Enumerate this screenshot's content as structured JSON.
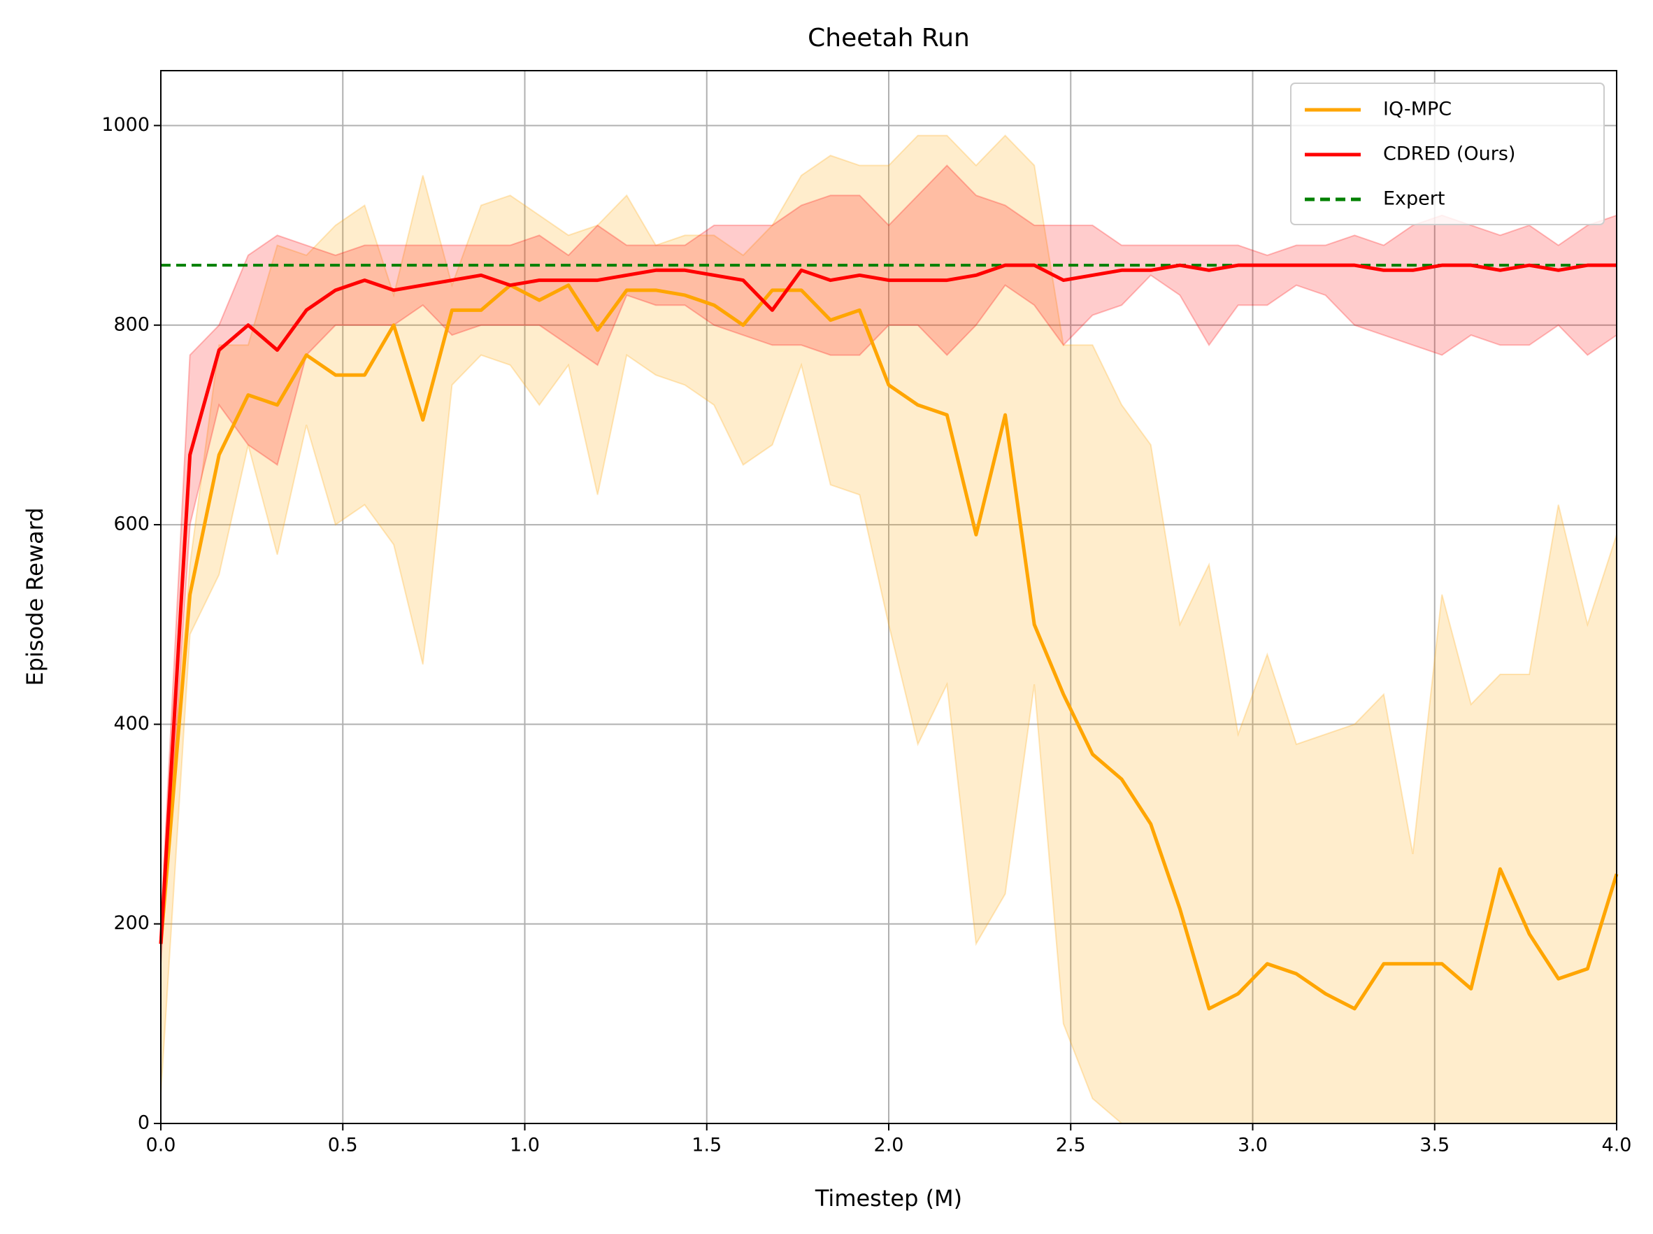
{
  "chart_data": {
    "type": "line",
    "title": "Cheetah Run",
    "x_label": "Timestep (M)",
    "y_label": "Episode Reward",
    "x": [
      0,
      0.08,
      0.16,
      0.24,
      0.32,
      0.4,
      0.48,
      0.56,
      0.64,
      0.72,
      0.8,
      0.88,
      0.96,
      1.04,
      1.12,
      1.2,
      1.28,
      1.36,
      1.44,
      1.52,
      1.6,
      1.68,
      1.76,
      1.84,
      1.92,
      2.0,
      2.08,
      2.16,
      2.24,
      2.32,
      2.4,
      2.48,
      2.56,
      2.64,
      2.72,
      2.8,
      2.88,
      2.96,
      3.04,
      3.12,
      3.2,
      3.28,
      3.36,
      3.44,
      3.52,
      3.6,
      3.68,
      3.76,
      3.84,
      3.92,
      4.0
    ],
    "series": [
      {
        "name": "IQ-MPC",
        "color": "#ffa500",
        "values": [
          180,
          530,
          670,
          730,
          720,
          770,
          750,
          750,
          800,
          705,
          815,
          815,
          840,
          825,
          840,
          795,
          835,
          835,
          830,
          820,
          800,
          835,
          835,
          805,
          815,
          740,
          720,
          710,
          590,
          710,
          500,
          430,
          370,
          345,
          300,
          215,
          115,
          130,
          160,
          150,
          130,
          115,
          160,
          160,
          160,
          135,
          255,
          190,
          145,
          155,
          250
        ],
        "lower": [
          30,
          490,
          550,
          680,
          570,
          700,
          600,
          620,
          580,
          460,
          740,
          770,
          760,
          720,
          760,
          630,
          770,
          750,
          740,
          720,
          660,
          680,
          760,
          640,
          630,
          500,
          380,
          440,
          180,
          230,
          440,
          100,
          25,
          0,
          0,
          0,
          0,
          0,
          0,
          0,
          0,
          0,
          0,
          0,
          0,
          0,
          0,
          0,
          0,
          0,
          0
        ],
        "upper": [
          200,
          560,
          780,
          780,
          880,
          870,
          900,
          920,
          830,
          950,
          840,
          920,
          930,
          910,
          890,
          900,
          930,
          880,
          890,
          890,
          870,
          900,
          950,
          970,
          960,
          960,
          990,
          990,
          960,
          990,
          960,
          780,
          780,
          720,
          680,
          500,
          560,
          390,
          470,
          380,
          390,
          400,
          430,
          270,
          530,
          420,
          450,
          450,
          620,
          500,
          590
        ]
      },
      {
        "name": "CDRED (Ours)",
        "color": "#ff0000",
        "values": [
          180,
          670,
          775,
          800,
          775,
          815,
          835,
          845,
          835,
          840,
          845,
          850,
          840,
          845,
          845,
          845,
          850,
          855,
          855,
          850,
          845,
          815,
          855,
          845,
          850,
          845,
          845,
          845,
          850,
          860,
          860,
          845,
          850,
          855,
          855,
          860,
          855,
          860,
          860,
          860,
          860,
          860,
          855,
          855,
          860,
          860,
          855,
          860,
          855,
          860,
          860
        ],
        "lower": [
          160,
          600,
          720,
          680,
          660,
          770,
          800,
          800,
          800,
          820,
          790,
          800,
          800,
          800,
          780,
          760,
          830,
          820,
          820,
          800,
          790,
          780,
          780,
          770,
          770,
          800,
          800,
          770,
          800,
          840,
          820,
          780,
          810,
          820,
          850,
          830,
          780,
          820,
          820,
          840,
          830,
          800,
          790,
          780,
          770,
          790,
          780,
          780,
          800,
          770,
          790
        ],
        "upper": [
          200,
          770,
          800,
          870,
          890,
          880,
          870,
          880,
          880,
          880,
          880,
          880,
          880,
          890,
          870,
          900,
          880,
          880,
          880,
          900,
          900,
          900,
          920,
          930,
          930,
          900,
          930,
          960,
          930,
          920,
          900,
          900,
          900,
          880,
          880,
          880,
          880,
          880,
          870,
          880,
          880,
          890,
          880,
          900,
          910,
          900,
          890,
          900,
          880,
          900,
          910
        ]
      }
    ],
    "reference": {
      "name": "Expert",
      "value": 860,
      "color": "#008000"
    },
    "xlim": [
      0,
      4
    ],
    "ylim": [
      0,
      1055
    ],
    "xticks": [
      {
        "value": 0,
        "label": "0.0"
      },
      0.5,
      {
        "value": 1,
        "label": "1.0"
      },
      1.5,
      {
        "value": 2,
        "label": "2.0"
      },
      2.5,
      {
        "value": 3,
        "label": "3.0"
      },
      3.5,
      {
        "value": 4,
        "label": "4.0"
      }
    ],
    "yticks": [
      0,
      200,
      400,
      600,
      800,
      1000
    ],
    "grid": true,
    "legend": "upper right"
  }
}
